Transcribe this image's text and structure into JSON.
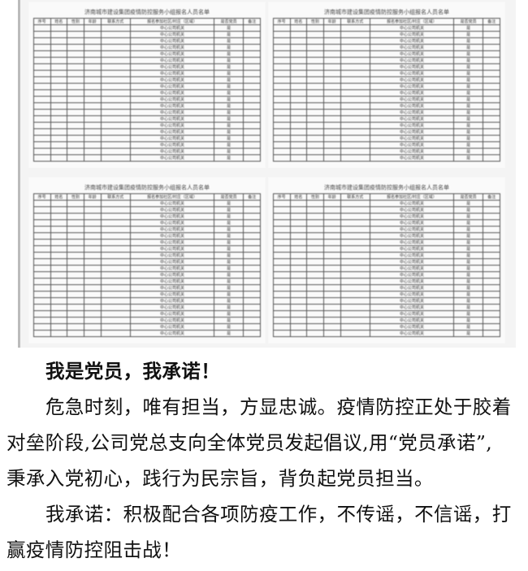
{
  "photo": {
    "sheet_title": "济南城市建设集团疫情防控服务小组报名人员名单",
    "headers": [
      "序号",
      "姓名",
      "性别",
      "年龄",
      "联系方式",
      "报名参加社区/村庄（区域）",
      "是否党员",
      "备注"
    ],
    "unit": "中心公司机关",
    "party": "是"
  },
  "article": {
    "heading": "我是党员，我承诺！",
    "lines": [
      "危急时刻，唯有担当，方显忠诚。疫情防控正处于胶着",
      "对垒阶段,公司党总支向全体党员发起倡议,用“党员承诺”,",
      "秉承入党初心，践行为民宗旨，背负起党员担当。",
      "我承诺：积极配合各项防疫工作，不传谣，不信谣，打",
      "赢疫情防控阻击战！"
    ]
  }
}
